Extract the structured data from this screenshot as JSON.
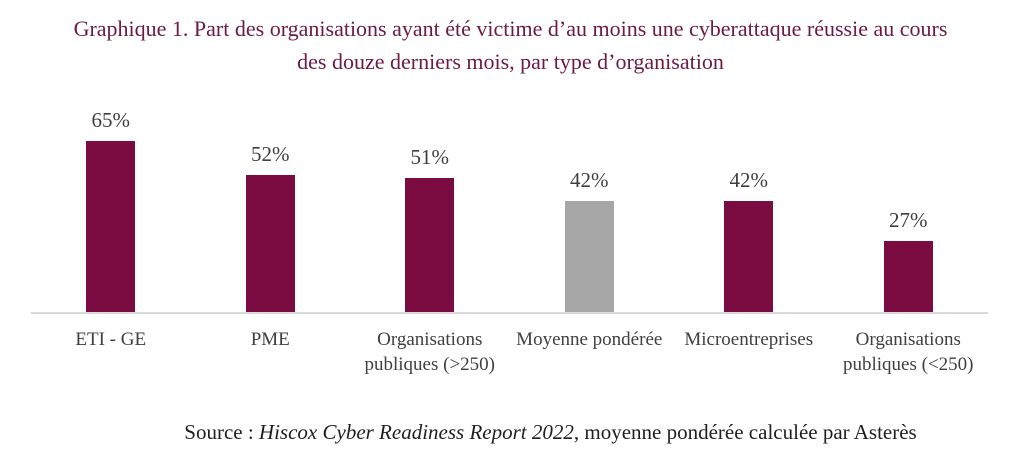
{
  "title": {
    "line1": "Graphique 1. Part des organisations ayant été victime d’au moins une cyberattaque réussie au cours",
    "line2": "des douze derniers mois, par type d’organisation"
  },
  "chart_data": {
    "type": "bar",
    "title": "Graphique 1. Part des organisations ayant été victime d’au moins une cyberattaque réussie au cours des douze derniers mois, par type d’organisation",
    "categories": [
      "ETI - GE",
      "PME",
      "Organisations publiques (>250)",
      "Moyenne pondérée",
      "Microentreprises",
      "Organisations publiques (<250)"
    ],
    "values": [
      65,
      52,
      51,
      42,
      42,
      27
    ],
    "data_labels": [
      "65%",
      "52%",
      "51%",
      "42%",
      "42%",
      "27%"
    ],
    "unit": "%",
    "bar_colors": [
      "#7B0C41",
      "#7B0C41",
      "#7B0C41",
      "#A6A6A6",
      "#7B0C41",
      "#7B0C41"
    ],
    "ylim": [
      0,
      70
    ],
    "xlabel": "",
    "ylabel": "",
    "grid": false,
    "legend_position": "none",
    "axis_line_color": "#D9D9D9"
  },
  "source": {
    "prefix": "Source : ",
    "italic": "Hiscox Cyber Readiness Report 2022",
    "suffix": ", moyenne pondérée calculée par Asterès"
  },
  "colors": {
    "title_text": "#6C1A46",
    "bar_primary": "#7B0C41",
    "bar_highlight": "#A6A6A6",
    "label_text": "#3F3F3F",
    "axis_line": "#D9D9D9",
    "source_text": "#1F1F1F"
  }
}
